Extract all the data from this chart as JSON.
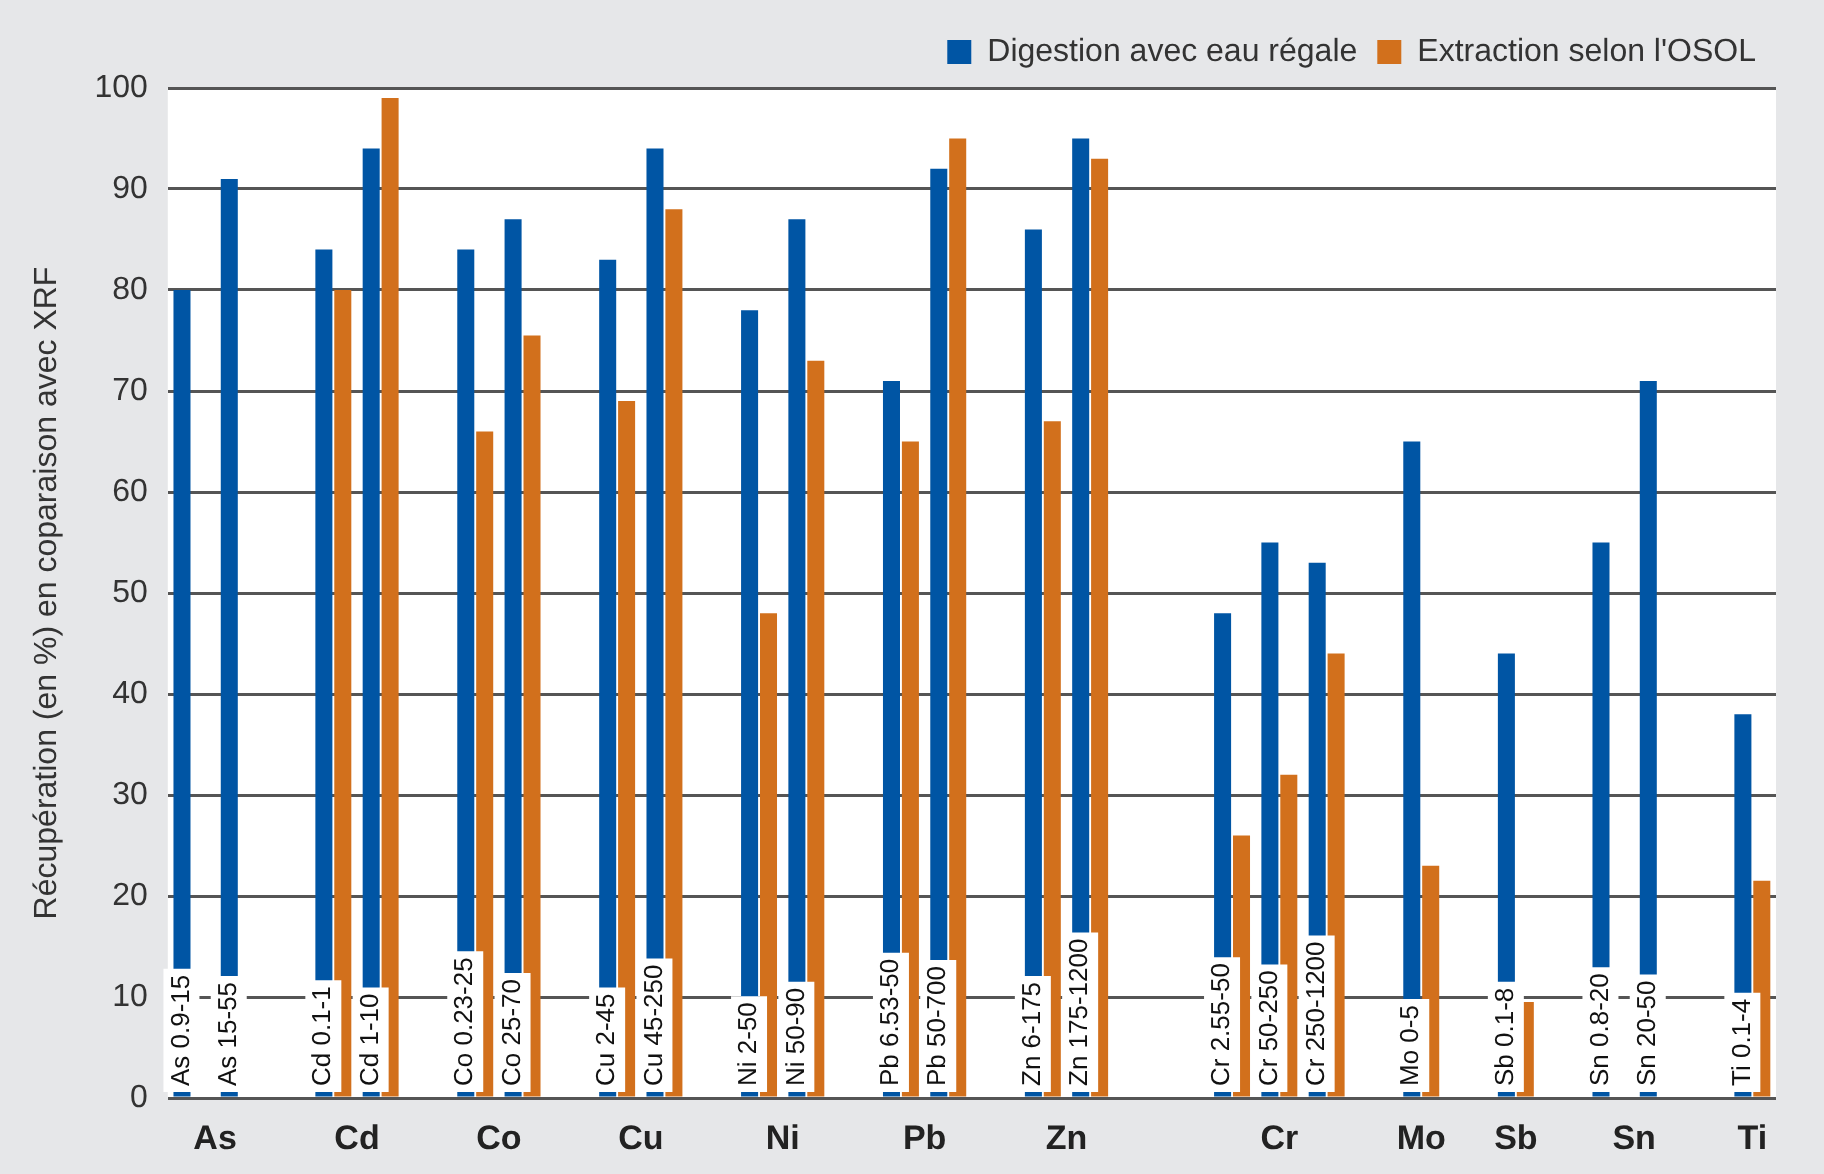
{
  "chart_data": {
    "type": "bar",
    "ylabel": "Récupération (en %) en coparaison avec XRF",
    "categories": [
      "As 0.9-15",
      "As 15-55",
      null,
      "Cd 0.1-1",
      "Cd 1-10",
      null,
      "Co 0.23-25",
      "Co 25-70",
      null,
      "Cu 2-45",
      "Cu 45-250",
      null,
      "Ni 2-50",
      "Ni 50-90",
      null,
      "Pb 6.53-50",
      "Pb 50-700",
      null,
      "Zn 6-175",
      "Zn 175-1200",
      null,
      null,
      "Cr 2.55-50",
      "Cr 50-250",
      "Cr 250-1200",
      null,
      "Mo 0-5",
      null,
      "Sb 0.1-8",
      null,
      "Sn 0.8-20",
      "Sn 20-50",
      null,
      "Ti 0.1-4"
    ],
    "series": [
      {
        "name": "Digestion avec eau régale",
        "color": "#0055a4",
        "values": [
          80,
          91,
          null,
          84,
          94,
          null,
          84,
          87,
          null,
          83,
          94,
          null,
          78,
          87,
          null,
          71,
          92,
          null,
          86,
          95,
          null,
          null,
          48,
          55,
          53,
          null,
          65,
          null,
          44,
          null,
          55,
          71,
          null,
          38
        ]
      },
      {
        "name": "Extraction selon l'OSOL",
        "color": "#d2701c",
        "values": [
          null,
          null,
          null,
          80,
          99,
          null,
          66,
          75.5,
          null,
          69,
          88,
          null,
          48,
          73,
          null,
          65,
          95,
          null,
          67,
          93,
          null,
          null,
          26,
          32,
          44,
          null,
          23,
          null,
          9.5,
          null,
          null,
          null,
          null,
          21.5
        ]
      }
    ],
    "ylim": [
      0,
      100
    ],
    "yticks": [
      0,
      10,
      20,
      30,
      40,
      50,
      60,
      70,
      80,
      90,
      100
    ],
    "grid": "y",
    "legend": "top right",
    "annotations": [
      "As",
      "Cd",
      "Co",
      "Cu",
      "Ni",
      "Pb",
      "Zn",
      "Cr",
      "Mo",
      "Sb",
      "Sn",
      "Ti"
    ]
  }
}
